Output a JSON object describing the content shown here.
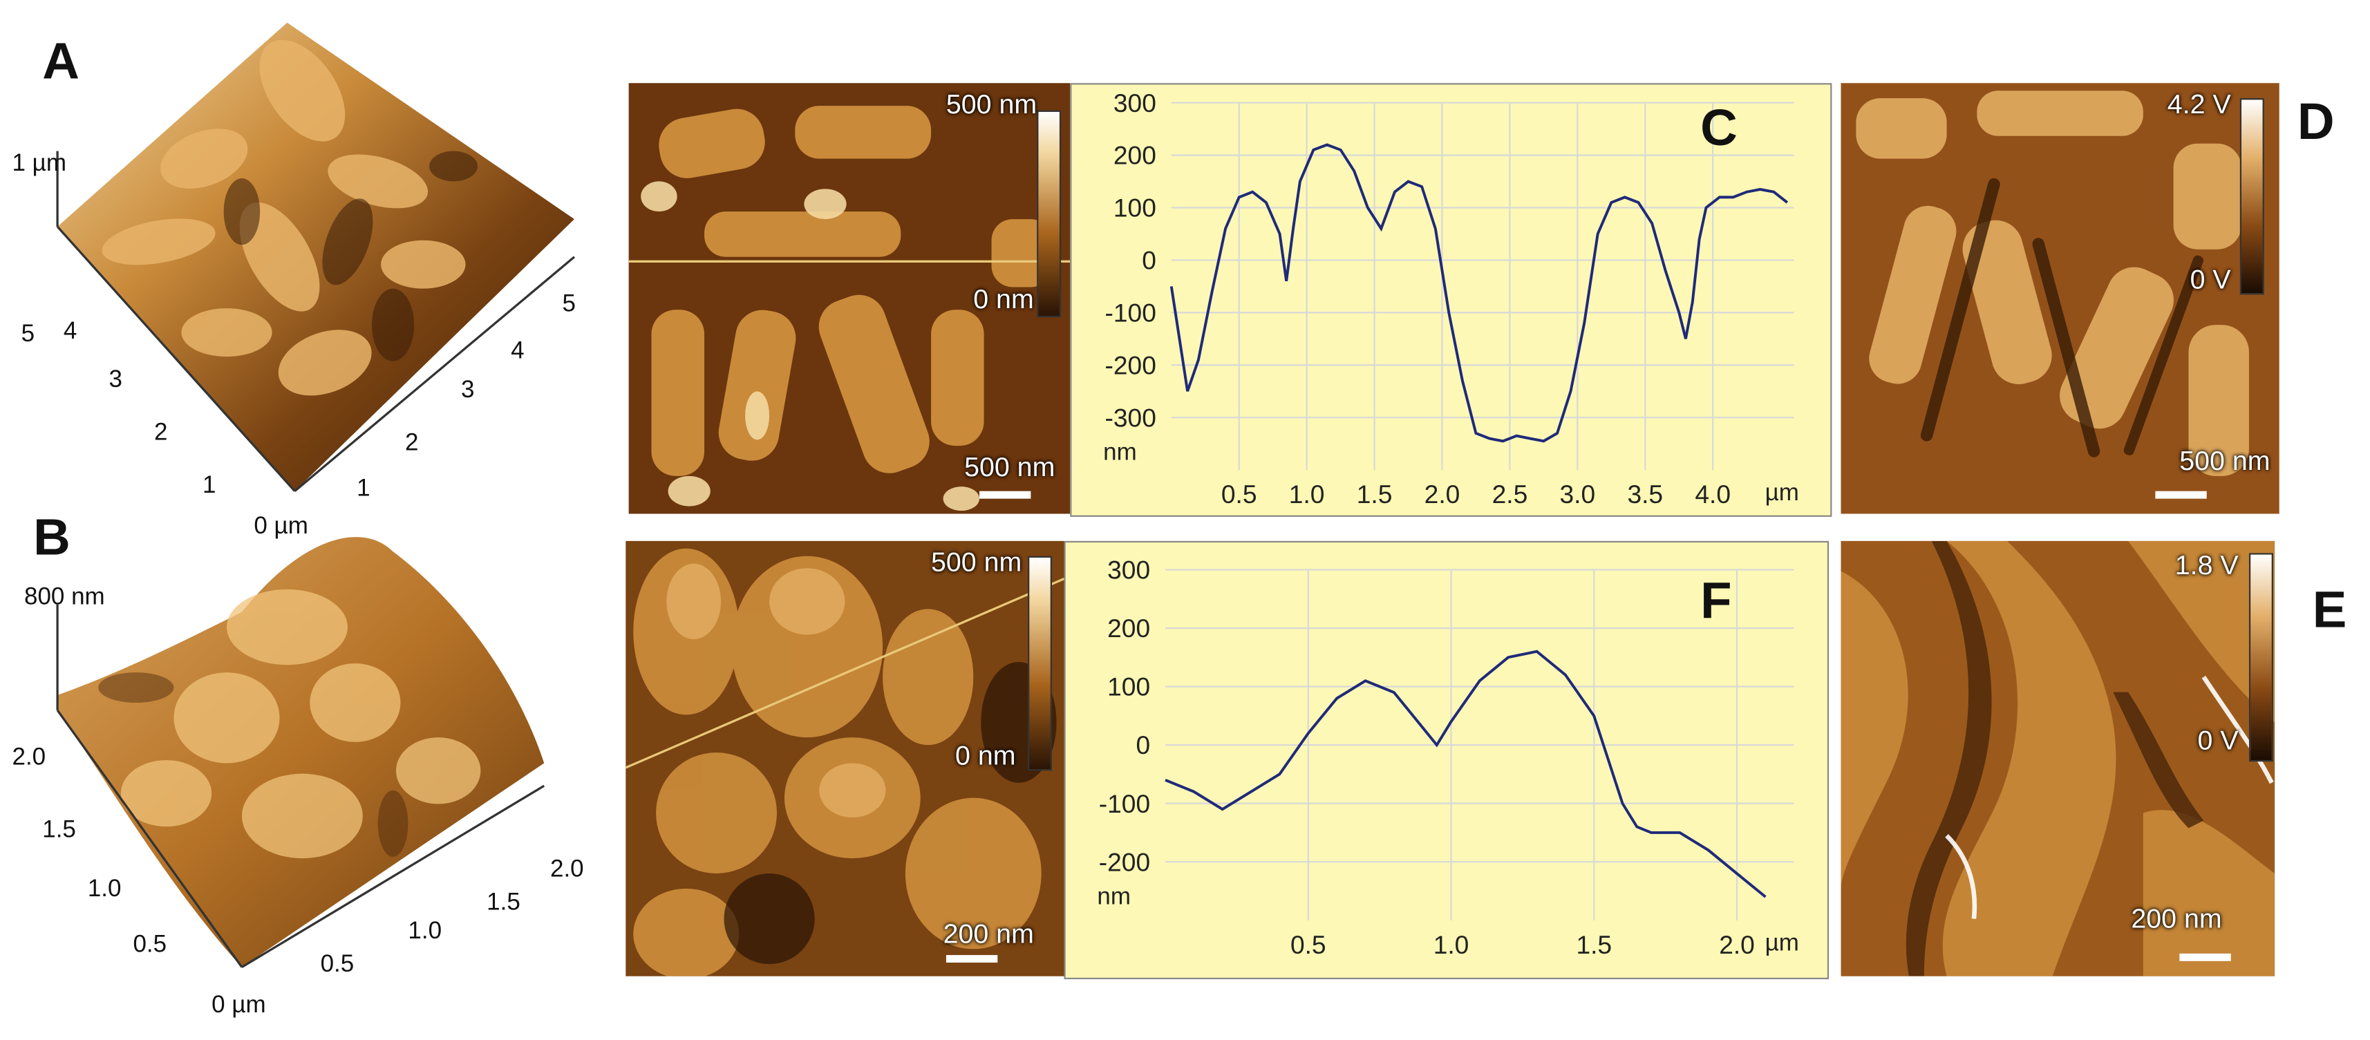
{
  "figure": {
    "panel_labels": {
      "A": "A",
      "B": "B",
      "C": "C",
      "D": "D",
      "E": "E",
      "F": "F"
    }
  },
  "panel_A": {
    "z_label": "1 µm",
    "left_ticks": [
      "5",
      "4",
      "3",
      "2",
      "1"
    ],
    "right_ticks": [
      "1",
      "2",
      "3",
      "4",
      "5"
    ],
    "origin_label": "0 µm"
  },
  "panel_B": {
    "z_label": "800 nm",
    "left_ticks": [
      "2.0",
      "1.5",
      "1.0",
      "0.5"
    ],
    "right_ticks": [
      "0.5",
      "1.0",
      "1.5",
      "2.0"
    ],
    "origin_label": "0 µm"
  },
  "topo_top": {
    "cb_max": "500 nm",
    "cb_min": "0 nm",
    "scale": "500 nm"
  },
  "topo_bottom": {
    "cb_max": "500 nm",
    "cb_min": "0 nm",
    "scale": "200 nm"
  },
  "phase_top": {
    "cb_max": "4.2 V",
    "cb_min": "0 V",
    "scale": "500 nm"
  },
  "phase_bottom": {
    "cb_max": "1.8 V",
    "cb_min": "0 V",
    "scale": "200 nm"
  },
  "colors": {
    "profile_bg": "#fdf8b5",
    "profile_line": "#1f2a7a",
    "grid": "#d8d8d8",
    "afm_dark": "#2a1405",
    "afm_mid": "#a8641c",
    "afm_light": "#f3d7a0"
  },
  "chart_data": [
    {
      "type": "line",
      "panel": "C",
      "ylabel": "nm",
      "xlabel": "µm",
      "ylim": [
        -400,
        300
      ],
      "xlim": [
        0,
        4.6
      ],
      "yticks": [
        300,
        200,
        100,
        0,
        -100,
        -200,
        -300
      ],
      "xticks": [
        0.5,
        1.0,
        1.5,
        2.0,
        2.5,
        3.0,
        3.5,
        4.0
      ],
      "xtick_labels": [
        "0.5",
        "1.0",
        "1.5",
        "2.0",
        "2.5",
        "3.0",
        "3.5",
        "4.0"
      ],
      "grid": true,
      "x": [
        0,
        0.12,
        0.2,
        0.3,
        0.4,
        0.5,
        0.6,
        0.7,
        0.8,
        0.85,
        0.9,
        0.95,
        1.05,
        1.15,
        1.25,
        1.35,
        1.45,
        1.55,
        1.65,
        1.75,
        1.85,
        1.95,
        2.05,
        2.15,
        2.25,
        2.35,
        2.45,
        2.55,
        2.65,
        2.75,
        2.85,
        2.95,
        3.05,
        3.15,
        3.25,
        3.35,
        3.45,
        3.55,
        3.65,
        3.75,
        3.8,
        3.85,
        3.9,
        3.95,
        4.05,
        4.15,
        4.25,
        4.35,
        4.45,
        4.55
      ],
      "values": [
        -50,
        -250,
        -190,
        -60,
        60,
        120,
        130,
        110,
        50,
        -40,
        60,
        150,
        210,
        220,
        210,
        170,
        100,
        60,
        130,
        150,
        140,
        60,
        -100,
        -230,
        -330,
        -340,
        -345,
        -335,
        -340,
        -345,
        -330,
        -250,
        -120,
        50,
        110,
        120,
        110,
        70,
        -20,
        -100,
        -150,
        -80,
        40,
        100,
        120,
        120,
        130,
        135,
        130,
        110
      ]
    },
    {
      "type": "line",
      "panel": "F",
      "ylabel": "nm",
      "xlabel": "µm",
      "ylim": [
        -300,
        300
      ],
      "xlim": [
        0,
        2.2
      ],
      "yticks": [
        300,
        200,
        100,
        0,
        -100,
        -200
      ],
      "xticks": [
        0.5,
        1.0,
        1.5,
        2.0
      ],
      "xtick_labels": [
        "0.5",
        "1.0",
        "1.5",
        "2.0"
      ],
      "grid": true,
      "x": [
        0,
        0.1,
        0.2,
        0.3,
        0.4,
        0.5,
        0.6,
        0.7,
        0.8,
        0.9,
        0.95,
        1.0,
        1.1,
        1.2,
        1.3,
        1.4,
        1.5,
        1.6,
        1.65,
        1.7,
        1.8,
        1.9,
        2.0,
        2.1
      ],
      "values": [
        -60,
        -80,
        -110,
        -80,
        -50,
        20,
        80,
        110,
        90,
        30,
        0,
        40,
        110,
        150,
        160,
        120,
        50,
        -100,
        -140,
        -150,
        -150,
        -180,
        -220,
        -260
      ]
    }
  ]
}
